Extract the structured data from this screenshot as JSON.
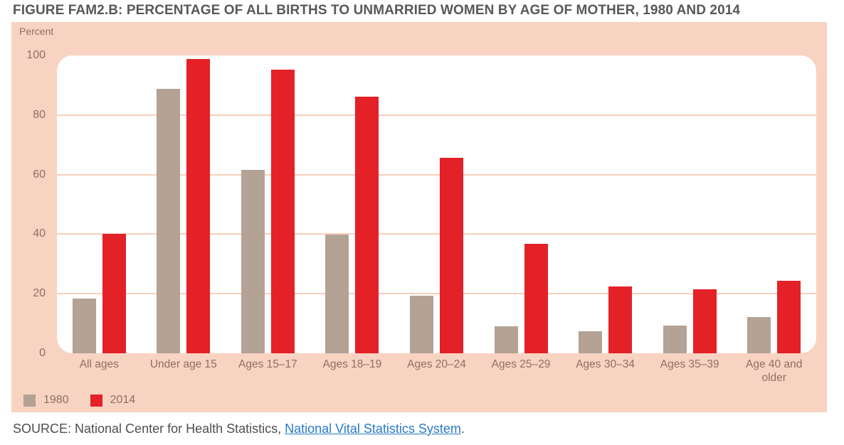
{
  "page": {
    "title": "FIGURE FAM2.B: PERCENTAGE OF ALL BIRTHS TO UNMARRIED WOMEN BY AGE OF MOTHER, 1980 AND 2014"
  },
  "chart_data": {
    "type": "bar",
    "title": "Percentage of all births to unmarried women by age of mother, 1980 and 2014",
    "ylabel": "Percent",
    "xlabel": "",
    "ylim": [
      0,
      100
    ],
    "yticks": [
      0,
      20,
      40,
      60,
      80,
      100
    ],
    "grid": "horizontal",
    "legend_position": "bottom-left",
    "categories": [
      "All ages",
      "Under age 15",
      "Ages 15–17",
      "Ages 18–19",
      "Ages 20–24",
      "Ages 25–29",
      "Ages 30–34",
      "Ages 35–39",
      "Age 40 and older"
    ],
    "series": [
      {
        "name": "1980",
        "color": "#b4a294",
        "values": [
          18.4,
          88.7,
          61.5,
          39.8,
          19.3,
          9.0,
          7.4,
          9.4,
          12.1
        ]
      },
      {
        "name": "2014",
        "color": "#e32127",
        "values": [
          40.2,
          98.9,
          95.2,
          86.1,
          65.7,
          36.8,
          22.4,
          21.4,
          24.3
        ]
      }
    ]
  },
  "source": {
    "prefix": "SOURCE: National Center for Health Statistics, ",
    "link_text": "National Vital Statistics System",
    "suffix": "."
  },
  "colors": {
    "panel_background": "#f8d3c1",
    "plot_background": "#fffefe",
    "gridline": "#f7cfbc",
    "bar_1980": "#b4a294",
    "bar_2014": "#e32127",
    "axis_text": "#8d7065",
    "title_text": "#58585b",
    "source_text": "#4c4e50",
    "link": "#2a79c6"
  }
}
